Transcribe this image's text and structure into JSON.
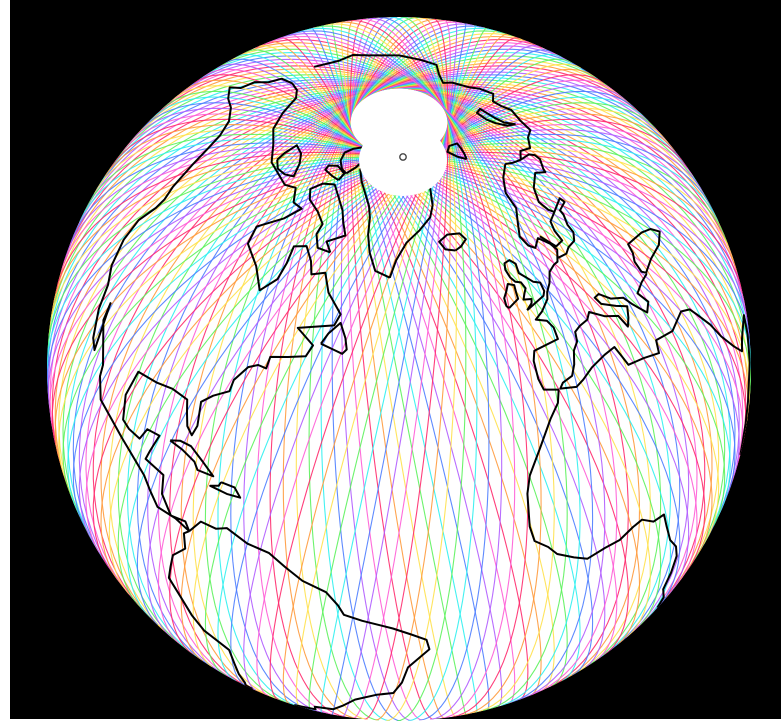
{
  "map": {
    "projection": "orthographic",
    "center_lat": 45,
    "center_lon": -40,
    "background_color": "#000000",
    "frame_color": "#ffffff",
    "coastline_color": "#000000",
    "gap_fill_color": "#ffffff",
    "pole_marker_color": "#444444",
    "orbit_track_colors": [
      "#ff2a6d",
      "#ff9a3c",
      "#ffe14d",
      "#5cf25c",
      "#2ff0f0",
      "#4d7dff",
      "#b05cff",
      "#ff5cd6"
    ],
    "orbit_inclination_deg": 82,
    "orbit_track_count": 144,
    "features": [
      "polar-gap",
      "north-pole-marker",
      "coastlines",
      "satellite-ground-tracks"
    ]
  }
}
